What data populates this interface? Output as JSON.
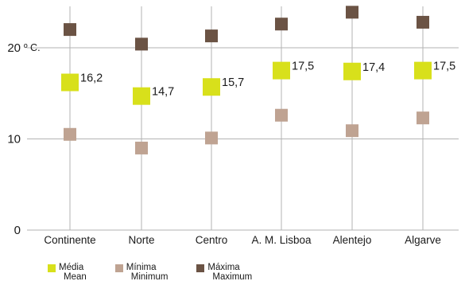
{
  "chart_data": {
    "type": "scatter",
    "categories": [
      "Continente",
      "Norte",
      "Centro",
      "A. M. Lisboa",
      "Alentejo",
      "Algarve"
    ],
    "series": [
      {
        "name": "Média",
        "name_en": "Mean",
        "color": "#d8e01b",
        "values": [
          16.2,
          14.7,
          15.7,
          17.5,
          17.4,
          17.5
        ],
        "labels": [
          "16,2",
          "14,7",
          "15,7",
          "17,5",
          "17,4",
          "17,5"
        ]
      },
      {
        "name": "Mínima",
        "name_en": "Minimum",
        "color": "#bfa392",
        "values": [
          10.5,
          9.0,
          10.1,
          12.6,
          10.9,
          12.3
        ]
      },
      {
        "name": "Máxima",
        "name_en": "Maximum",
        "color": "#6b5344",
        "values": [
          22.0,
          20.4,
          21.3,
          22.6,
          23.9,
          22.8
        ]
      }
    ],
    "yticks": [
      "0",
      "10",
      "20"
    ],
    "ytick_values": [
      0,
      10,
      20
    ],
    "ylim": [
      0,
      24.5
    ],
    "y_unit": "º C.",
    "grid": true,
    "legend_position": "bottom-left"
  }
}
